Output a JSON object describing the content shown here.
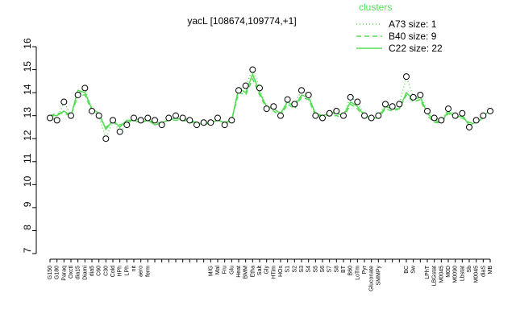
{
  "chart_data": {
    "type": "line",
    "title": "yacL [108674,109774,+1]",
    "legend_title": "clusters",
    "categories": [
      "G150",
      "G180",
      "Paraq",
      "Oxctl",
      "dia15",
      "Diami",
      "dia5",
      "C60",
      "C30",
      "Cold",
      "HPh",
      "LPh",
      "nit",
      "aero",
      "ferm",
      null,
      null,
      null,
      null,
      null,
      null,
      null,
      null,
      "M/G",
      "Mal",
      "Fru",
      "Glu",
      "Heat",
      "BMM",
      "Etha",
      "Salt",
      "Gly",
      "HTim",
      "HOs",
      "S1",
      "S2",
      "S3",
      "S4",
      "S5",
      "S6",
      "S7",
      "S8",
      "BT",
      "B60",
      "LoTm",
      "Pyr",
      "Gluconate",
      "SMMPy",
      null,
      null,
      null,
      "BC",
      "Sw",
      null,
      "LPhT",
      "LBGstat",
      "M0045",
      "M0D",
      "M0090",
      "Lbstat",
      "Sb",
      "M0045",
      "diaS",
      "MB"
    ],
    "series": [
      {
        "name": "A73 size: 1",
        "color": "#55dd55",
        "style": "dotted",
        "values": [
          12.9,
          12.8,
          13.6,
          13.0,
          13.9,
          14.2,
          13.2,
          13.0,
          12.0,
          12.8,
          12.3,
          12.6,
          12.9,
          12.8,
          12.9,
          12.8,
          12.6,
          12.9,
          13.0,
          12.9,
          12.8,
          12.6,
          12.7,
          12.7,
          12.9,
          12.6,
          12.8,
          14.1,
          14.3,
          15.0,
          14.2,
          13.3,
          13.4,
          13.0,
          13.7,
          13.5,
          14.1,
          13.9,
          13.0,
          12.9,
          13.1,
          13.2,
          13.0,
          13.8,
          13.6,
          13.0,
          12.9,
          13.0,
          13.5,
          13.4,
          13.5,
          14.7,
          13.8,
          13.9,
          13.2,
          12.9,
          12.8,
          13.3,
          13.0,
          13.1,
          12.5,
          12.8,
          13.0,
          13.2
        ]
      },
      {
        "name": "B40 size: 9",
        "color": "#55dd55",
        "style": "dashed",
        "values": [
          13.0,
          13.1,
          13.1,
          13.0,
          13.9,
          13.9,
          13.2,
          13.0,
          12.5,
          12.7,
          12.6,
          12.7,
          12.8,
          12.7,
          12.8,
          12.7,
          12.7,
          12.8,
          12.8,
          12.8,
          12.7,
          12.7,
          12.6,
          12.7,
          12.8,
          12.7,
          12.8,
          14.0,
          13.9,
          14.6,
          13.9,
          13.3,
          13.2,
          13.0,
          13.5,
          13.3,
          13.8,
          13.7,
          13.0,
          13.0,
          13.0,
          13.0,
          12.9,
          13.5,
          13.3,
          12.9,
          12.9,
          12.9,
          13.3,
          13.2,
          13.3,
          13.9,
          13.6,
          13.7,
          13.0,
          12.7,
          12.7,
          13.1,
          12.9,
          12.9,
          12.7,
          12.7,
          12.9,
          13.2
        ]
      },
      {
        "name": "C22 size: 22",
        "color": "#55dd55",
        "style": "solid",
        "values": [
          13.0,
          13.0,
          13.2,
          13.0,
          14.1,
          14.0,
          13.3,
          13.1,
          12.4,
          12.8,
          12.5,
          12.8,
          12.8,
          12.7,
          12.8,
          12.6,
          12.7,
          12.8,
          12.9,
          12.8,
          12.8,
          12.7,
          12.6,
          12.7,
          12.8,
          12.7,
          12.8,
          14.2,
          14.0,
          14.8,
          14.0,
          13.4,
          13.3,
          13.1,
          13.6,
          13.4,
          13.9,
          13.8,
          13.1,
          13.0,
          13.1,
          13.1,
          13.0,
          13.6,
          13.4,
          13.0,
          12.9,
          12.9,
          13.4,
          13.3,
          13.3,
          14.0,
          13.7,
          13.8,
          13.1,
          12.8,
          12.7,
          13.2,
          12.9,
          13.0,
          12.6,
          12.7,
          12.9,
          13.3
        ]
      }
    ],
    "ylim": [
      7,
      16
    ],
    "yticks": [
      7,
      8,
      9,
      10,
      11,
      12,
      13,
      14,
      15,
      16
    ]
  }
}
